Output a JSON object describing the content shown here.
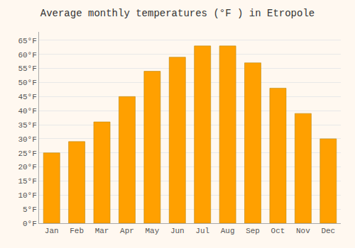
{
  "chart_data": {
    "type": "bar",
    "title": "Average monthly temperatures (°F ) in Etropole",
    "categories": [
      "Jan",
      "Feb",
      "Mar",
      "Apr",
      "May",
      "Jun",
      "Jul",
      "Aug",
      "Sep",
      "Oct",
      "Nov",
      "Dec"
    ],
    "values": [
      25,
      29,
      36,
      45,
      54,
      59,
      63,
      63,
      57,
      48,
      39,
      30
    ],
    "color": "#FFA000",
    "ylim": [
      0,
      68
    ],
    "yticks": [
      {
        "value": 0,
        "label": "0°F"
      },
      {
        "value": 5,
        "label": "5°F"
      },
      {
        "value": 10,
        "label": "10°F"
      },
      {
        "value": 15,
        "label": "15°F"
      },
      {
        "value": 20,
        "label": "20°F"
      },
      {
        "value": 25,
        "label": "25°F"
      },
      {
        "value": 30,
        "label": "30°F"
      },
      {
        "value": 35,
        "label": "35°F"
      },
      {
        "value": 40,
        "label": "40°F"
      },
      {
        "value": 45,
        "label": "45°F"
      },
      {
        "value": 50,
        "label": "50°F"
      },
      {
        "value": 55,
        "label": "55°F"
      },
      {
        "value": 60,
        "label": "60°F"
      },
      {
        "value": 65,
        "label": "65°F"
      }
    ],
    "grid": true
  }
}
